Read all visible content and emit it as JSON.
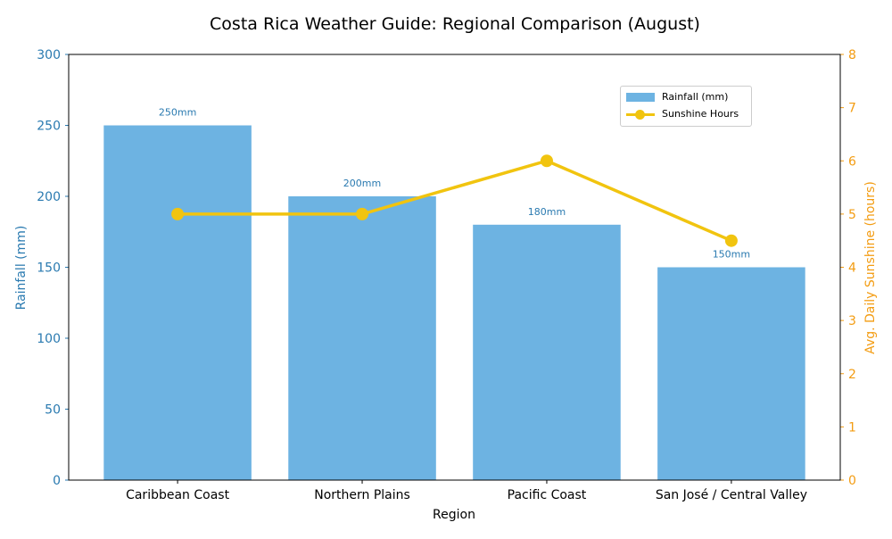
{
  "chart_data": {
    "type": "bar+line",
    "title": "Costa Rica Weather Guide: Regional Comparison (August)",
    "xlabel": "Region",
    "ylabel": "Rainfall (mm)",
    "y2label": "Avg. Daily Sunshine (hours)",
    "categories": [
      "Caribbean Coast",
      "Northern Plains",
      "Pacific Coast",
      "San José / Central Valley"
    ],
    "series": [
      {
        "name": "Rainfall (mm)",
        "type": "bar",
        "axis": "left",
        "values": [
          250,
          200,
          180,
          150
        ],
        "labels": [
          "250mm",
          "200mm",
          "180mm",
          "150mm"
        ],
        "color": "#6db3e2"
      },
      {
        "name": "Sunshine Hours",
        "type": "line",
        "axis": "right",
        "values": [
          5,
          5,
          6,
          4.5
        ],
        "color": "#f1c40f"
      }
    ],
    "ylim": [
      0,
      300
    ],
    "yticks": [
      "0",
      "50",
      "100",
      "150",
      "200",
      "250",
      "300"
    ],
    "y2lim": [
      0,
      8
    ],
    "y2ticks": [
      "0",
      "1",
      "2",
      "3",
      "4",
      "5",
      "6",
      "7",
      "8"
    ],
    "left_axis_color": "#2a7ab0",
    "right_axis_color": "#f39c12",
    "grid": false,
    "legend_position": "upper-right"
  }
}
